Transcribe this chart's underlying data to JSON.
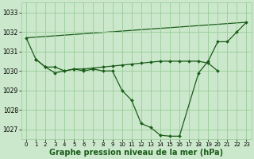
{
  "background_color": "#cce8cc",
  "plot_bg_color": "#cce8cc",
  "grid_color": "#99cc99",
  "line_color": "#1a5c1a",
  "marker_color": "#1a5c1a",
  "xlabel": "Graphe pression niveau de la mer (hPa)",
  "xlabel_fontsize": 7.0,
  "ylim": [
    1026.5,
    1033.5
  ],
  "xlim": [
    -0.5,
    23.5
  ],
  "yticks": [
    1027,
    1028,
    1029,
    1030,
    1031,
    1032,
    1033
  ],
  "xticks": [
    0,
    1,
    2,
    3,
    4,
    5,
    6,
    7,
    8,
    9,
    10,
    11,
    12,
    13,
    14,
    15,
    16,
    17,
    18,
    19,
    20,
    21,
    22,
    23
  ],
  "series": {
    "dip": [
      1031.7,
      1030.6,
      1030.2,
      1029.9,
      1030.0,
      1030.1,
      1030.0,
      1030.1,
      1030.0,
      1030.0,
      1029.0,
      1028.5,
      1027.3,
      1027.1,
      1026.7,
      1026.65,
      1026.65,
      1029.9,
      1030.5,
      1031.5,
      1031.5,
      1032.0,
      1032.5
    ],
    "dip_x": [
      0,
      1,
      2,
      3,
      4,
      5,
      6,
      7,
      8,
      9,
      10,
      11,
      12,
      13,
      14,
      15,
      16,
      18,
      19,
      20,
      21,
      22,
      23
    ],
    "flat": [
      1030.6,
      1030.2,
      1030.2,
      1030.0,
      1030.1,
      1030.1,
      1030.15,
      1030.2,
      1030.25,
      1030.3,
      1030.35,
      1030.4,
      1030.45,
      1030.5,
      1030.5,
      1030.5,
      1030.5,
      1030.5,
      1030.4,
      1030.0
    ],
    "flat_x": [
      1,
      2,
      3,
      4,
      5,
      6,
      7,
      8,
      9,
      10,
      11,
      12,
      13,
      14,
      15,
      16,
      17,
      18,
      19,
      20
    ],
    "trend_x": [
      0,
      23
    ],
    "trend_y": [
      1031.7,
      1032.5
    ]
  }
}
